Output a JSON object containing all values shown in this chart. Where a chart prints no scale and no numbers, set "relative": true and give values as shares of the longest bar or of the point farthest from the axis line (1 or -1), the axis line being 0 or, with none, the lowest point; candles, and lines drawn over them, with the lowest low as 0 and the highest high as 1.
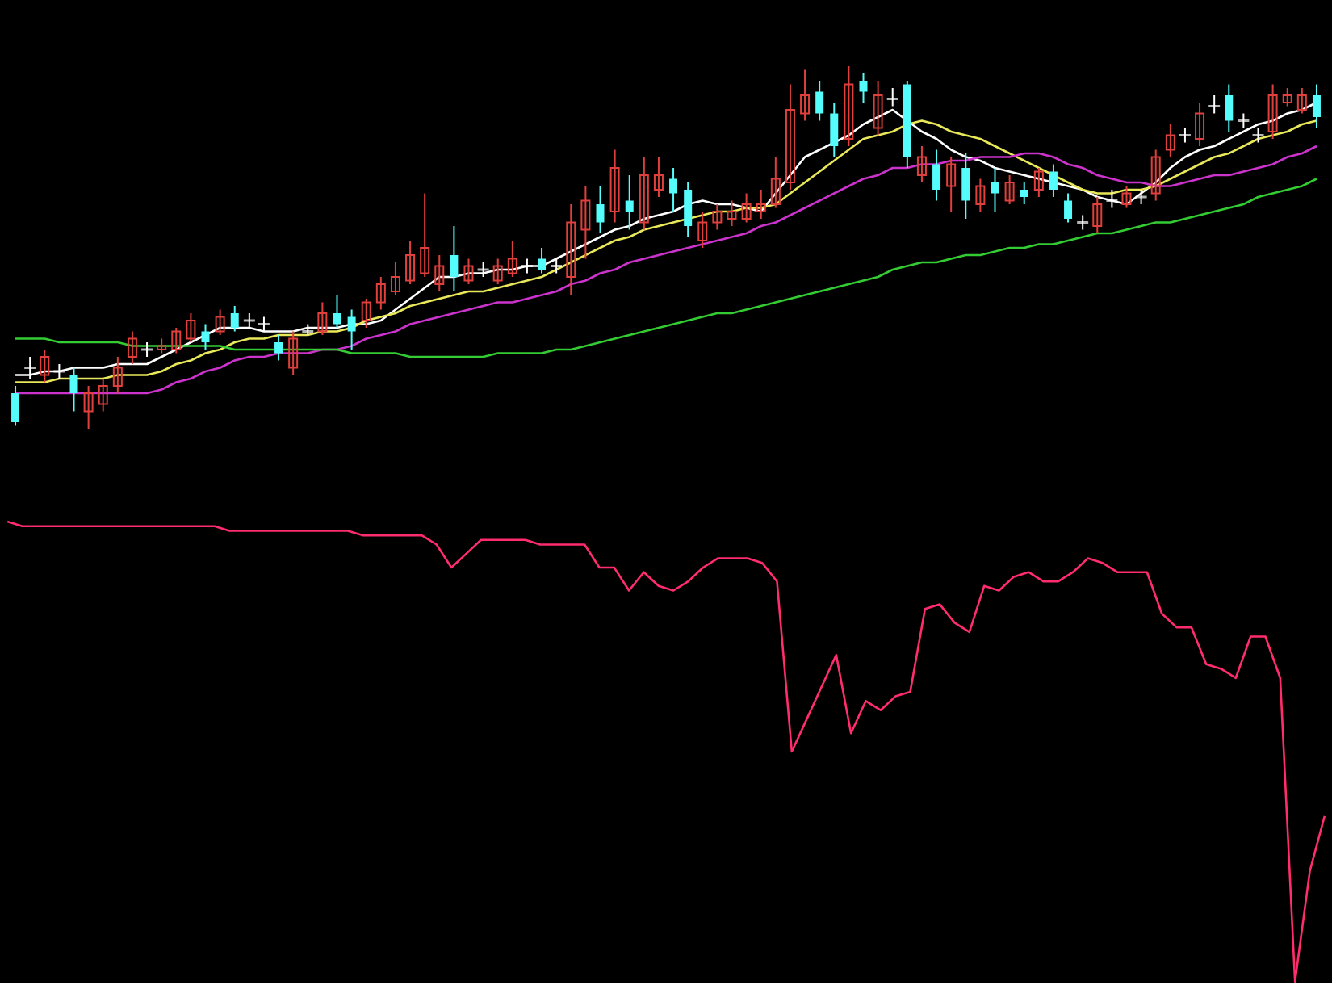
{
  "chart_data": [
    {
      "type": "candlestick",
      "relative": true,
      "categories": [
        null,
        null,
        null,
        null,
        null,
        null,
        null,
        null,
        null,
        null,
        null,
        null,
        null,
        null,
        null,
        null,
        null,
        null,
        null,
        null,
        null,
        null,
        null,
        null,
        null,
        null,
        null,
        null,
        null,
        null,
        null,
        null,
        null,
        null,
        null,
        null,
        null,
        null,
        null,
        null,
        null,
        null,
        null,
        null,
        null,
        null,
        null,
        null,
        null,
        null,
        null,
        null,
        null,
        null,
        null,
        null,
        null,
        null,
        null,
        null,
        null,
        null,
        null,
        null,
        null,
        null,
        null,
        null,
        null,
        null,
        null,
        null,
        null,
        null,
        null,
        null,
        null,
        null,
        null,
        null,
        null,
        null,
        null,
        null,
        null,
        null,
        null,
        null,
        null,
        null
      ],
      "ohlc": [
        [
          0.1,
          0.12,
          0.01,
          0.02
        ],
        [
          0.17,
          0.2,
          0.14,
          0.17
        ],
        [
          0.15,
          0.22,
          0.13,
          0.2
        ],
        [
          0.16,
          0.18,
          0.14,
          0.16
        ],
        [
          0.15,
          0.17,
          0.05,
          0.1
        ],
        [
          0.05,
          0.12,
          0,
          0.1
        ],
        [
          0.07,
          0.14,
          0.05,
          0.12
        ],
        [
          0.12,
          0.2,
          0.1,
          0.17
        ],
        [
          0.2,
          0.27,
          0.18,
          0.25
        ],
        [
          0.22,
          0.24,
          0.2,
          0.22
        ],
        [
          0.22,
          0.25,
          0.21,
          0.23
        ],
        [
          0.22,
          0.28,
          0.21,
          0.27
        ],
        [
          0.25,
          0.32,
          0.24,
          0.3
        ],
        [
          0.27,
          0.29,
          0.22,
          0.24
        ],
        [
          0.27,
          0.33,
          0.26,
          0.31
        ],
        [
          0.32,
          0.34,
          0.27,
          0.28
        ],
        [
          0.3,
          0.32,
          0.28,
          0.3
        ],
        [
          0.29,
          0.31,
          0.27,
          0.29
        ],
        [
          0.24,
          0.26,
          0.19,
          0.21
        ],
        [
          0.17,
          0.27,
          0.15,
          0.25
        ],
        [
          0.27,
          0.29,
          0.26,
          0.27
        ],
        [
          0.27,
          0.35,
          0.26,
          0.32
        ],
        [
          0.32,
          0.37,
          0.28,
          0.29
        ],
        [
          0.31,
          0.33,
          0.22,
          0.27
        ],
        [
          0.3,
          0.36,
          0.28,
          0.35
        ],
        [
          0.35,
          0.42,
          0.33,
          0.4
        ],
        [
          0.38,
          0.46,
          0.37,
          0.42
        ],
        [
          0.41,
          0.52,
          0.4,
          0.48
        ],
        [
          0.43,
          0.65,
          0.42,
          0.5
        ],
        [
          0.4,
          0.48,
          0.38,
          0.45
        ],
        [
          0.48,
          0.56,
          0.38,
          0.42
        ],
        [
          0.41,
          0.47,
          0.4,
          0.45
        ],
        [
          0.44,
          0.46,
          0.42,
          0.44
        ],
        [
          0.41,
          0.47,
          0.4,
          0.45
        ],
        [
          0.43,
          0.52,
          0.42,
          0.47
        ],
        [
          0.45,
          0.47,
          0.43,
          0.45
        ],
        [
          0.47,
          0.5,
          0.43,
          0.44
        ],
        [
          0.45,
          0.47,
          0.43,
          0.45
        ],
        [
          0.42,
          0.62,
          0.37,
          0.57
        ],
        [
          0.55,
          0.67,
          0.47,
          0.63
        ],
        [
          0.62,
          0.67,
          0.54,
          0.57
        ],
        [
          0.6,
          0.77,
          0.57,
          0.72
        ],
        [
          0.63,
          0.7,
          0.55,
          0.6
        ],
        [
          0.57,
          0.75,
          0.55,
          0.7
        ],
        [
          0.66,
          0.75,
          0.64,
          0.7
        ],
        [
          0.69,
          0.72,
          0.6,
          0.65
        ],
        [
          0.66,
          0.68,
          0.53,
          0.56
        ],
        [
          0.52,
          0.6,
          0.5,
          0.57
        ],
        [
          0.57,
          0.62,
          0.55,
          0.6
        ],
        [
          0.58,
          0.63,
          0.56,
          0.6
        ],
        [
          0.58,
          0.65,
          0.57,
          0.62
        ],
        [
          0.6,
          0.66,
          0.58,
          0.62
        ],
        [
          0.62,
          0.75,
          0.61,
          0.69
        ],
        [
          0.68,
          0.95,
          0.66,
          0.88
        ],
        [
          0.87,
          0.99,
          0.85,
          0.92
        ],
        [
          0.93,
          0.96,
          0.85,
          0.87
        ],
        [
          0.87,
          0.9,
          0.75,
          0.78
        ],
        [
          0.8,
          1.0,
          0.78,
          0.95
        ],
        [
          0.96,
          0.98,
          0.9,
          0.93
        ],
        [
          0.83,
          0.96,
          0.81,
          0.92
        ],
        [
          0.91,
          0.94,
          0.89,
          0.91
        ],
        [
          0.95,
          0.96,
          0.72,
          0.75
        ],
        [
          0.7,
          0.78,
          0.68,
          0.75
        ],
        [
          0.73,
          0.77,
          0.63,
          0.66
        ],
        [
          0.67,
          0.75,
          0.6,
          0.73
        ],
        [
          0.72,
          0.76,
          0.58,
          0.63
        ],
        [
          0.62,
          0.69,
          0.6,
          0.67
        ],
        [
          0.68,
          0.72,
          0.6,
          0.65
        ],
        [
          0.63,
          0.7,
          0.62,
          0.68
        ],
        [
          0.66,
          0.68,
          0.62,
          0.64
        ],
        [
          0.66,
          0.72,
          0.64,
          0.71
        ],
        [
          0.71,
          0.73,
          0.64,
          0.66
        ],
        [
          0.63,
          0.65,
          0.57,
          0.58
        ],
        [
          0.57,
          0.59,
          0.55,
          0.57
        ],
        [
          0.56,
          0.64,
          0.54,
          0.62
        ],
        [
          0.63,
          0.66,
          0.61,
          0.63
        ],
        [
          0.62,
          0.67,
          0.61,
          0.65
        ],
        [
          0.64,
          0.66,
          0.62,
          0.64
        ],
        [
          0.65,
          0.77,
          0.63,
          0.75
        ],
        [
          0.77,
          0.84,
          0.75,
          0.81
        ],
        [
          0.81,
          0.83,
          0.79,
          0.81
        ],
        [
          0.8,
          0.9,
          0.78,
          0.87
        ],
        [
          0.89,
          0.92,
          0.87,
          0.89
        ],
        [
          0.92,
          0.95,
          0.82,
          0.85
        ],
        [
          0.85,
          0.87,
          0.83,
          0.85
        ],
        [
          0.81,
          0.83,
          0.79,
          0.81
        ],
        [
          0.82,
          0.95,
          0.8,
          0.92
        ],
        [
          0.9,
          0.94,
          0.89,
          0.92
        ],
        [
          0.88,
          0.94,
          0.87,
          0.92
        ],
        [
          0.92,
          0.95,
          0.83,
          0.86
        ]
      ],
      "colors": [
        "#54fcfc",
        "#ffffff",
        "#e0403c",
        "#ffffff",
        "#54fcfc",
        "#e0403c",
        "#e0403c",
        "#e0403c",
        "#e0403c",
        "#ffffff",
        "#e0403c",
        "#e0403c",
        "#e0403c",
        "#54fcfc",
        "#e0403c",
        "#54fcfc",
        "#ffffff",
        "#ffffff",
        "#54fcfc",
        "#e0403c",
        "#ffffff",
        "#e0403c",
        "#54fcfc",
        "#54fcfc",
        "#e0403c",
        "#e0403c",
        "#e0403c",
        "#e0403c",
        "#e0403c",
        "#e0403c",
        "#54fcfc",
        "#e0403c",
        "#ffffff",
        "#e0403c",
        "#e0403c",
        "#ffffff",
        "#54fcfc",
        "#ffffff",
        "#e0403c",
        "#e0403c",
        "#54fcfc",
        "#e0403c",
        "#54fcfc",
        "#e0403c",
        "#e0403c",
        "#54fcfc",
        "#54fcfc",
        "#e0403c",
        "#e0403c",
        "#e0403c",
        "#e0403c",
        "#e0403c",
        "#e0403c",
        "#e0403c",
        "#e0403c",
        "#54fcfc",
        "#54fcfc",
        "#e0403c",
        "#54fcfc",
        "#e0403c",
        "#ffffff",
        "#54fcfc",
        "#e0403c",
        "#54fcfc",
        "#e0403c",
        "#54fcfc",
        "#e0403c",
        "#54fcfc",
        "#e0403c",
        "#54fcfc",
        "#e0403c",
        "#54fcfc",
        "#54fcfc",
        "#ffffff",
        "#e0403c",
        "#ffffff",
        "#e0403c",
        "#ffffff",
        "#e0403c",
        "#e0403c",
        "#ffffff",
        "#e0403c",
        "#ffffff",
        "#54fcfc",
        "#ffffff",
        "#ffffff",
        "#e0403c",
        "#e0403c",
        "#e0403c",
        "#54fcfc"
      ],
      "series": [
        {
          "type": "line",
          "color": "#ffffff",
          "values": [
            0.15,
            0.15,
            0.16,
            0.16,
            0.17,
            0.17,
            0.17,
            0.18,
            0.18,
            0.18,
            0.2,
            0.22,
            0.24,
            0.26,
            0.28,
            0.28,
            0.28,
            0.27,
            0.27,
            0.27,
            0.28,
            0.28,
            0.28,
            0.29,
            0.29,
            0.3,
            0.33,
            0.36,
            0.39,
            0.42,
            0.42,
            0.43,
            0.43,
            0.44,
            0.44,
            0.45,
            0.45,
            0.47,
            0.49,
            0.51,
            0.53,
            0.55,
            0.56,
            0.58,
            0.59,
            0.6,
            0.62,
            0.63,
            0.62,
            0.62,
            0.61,
            0.6,
            0.65,
            0.7,
            0.75,
            0.77,
            0.79,
            0.81,
            0.84,
            0.86,
            0.88,
            0.85,
            0.82,
            0.8,
            0.77,
            0.75,
            0.74,
            0.72,
            0.71,
            0.7,
            0.69,
            0.68,
            0.67,
            0.66,
            0.64,
            0.63,
            0.62,
            0.65,
            0.68,
            0.72,
            0.75,
            0.77,
            0.78,
            0.8,
            0.82,
            0.84,
            0.85,
            0.87,
            0.88,
            0.9
          ]
        },
        {
          "type": "line",
          "color": "#e8e85a",
          "values": [
            0.13,
            0.13,
            0.13,
            0.14,
            0.14,
            0.14,
            0.14,
            0.15,
            0.15,
            0.15,
            0.16,
            0.18,
            0.19,
            0.21,
            0.22,
            0.24,
            0.25,
            0.25,
            0.26,
            0.26,
            0.26,
            0.27,
            0.27,
            0.28,
            0.3,
            0.31,
            0.32,
            0.34,
            0.35,
            0.36,
            0.37,
            0.38,
            0.38,
            0.39,
            0.4,
            0.41,
            0.42,
            0.44,
            0.46,
            0.48,
            0.5,
            0.52,
            0.53,
            0.55,
            0.56,
            0.57,
            0.58,
            0.59,
            0.6,
            0.6,
            0.61,
            0.61,
            0.62,
            0.65,
            0.68,
            0.71,
            0.74,
            0.77,
            0.8,
            0.81,
            0.82,
            0.84,
            0.85,
            0.84,
            0.82,
            0.81,
            0.8,
            0.78,
            0.76,
            0.74,
            0.72,
            0.7,
            0.68,
            0.66,
            0.65,
            0.65,
            0.66,
            0.66,
            0.67,
            0.69,
            0.71,
            0.73,
            0.75,
            0.76,
            0.78,
            0.8,
            0.81,
            0.82,
            0.84,
            0.85
          ]
        },
        {
          "type": "line",
          "color": "#cc33cc",
          "values": [
            0.1,
            0.1,
            0.1,
            0.1,
            0.1,
            0.1,
            0.1,
            0.1,
            0.1,
            0.1,
            0.11,
            0.13,
            0.14,
            0.16,
            0.17,
            0.19,
            0.2,
            0.2,
            0.21,
            0.21,
            0.21,
            0.22,
            0.22,
            0.23,
            0.25,
            0.26,
            0.27,
            0.29,
            0.3,
            0.31,
            0.32,
            0.33,
            0.34,
            0.35,
            0.35,
            0.36,
            0.37,
            0.38,
            0.4,
            0.41,
            0.43,
            0.44,
            0.46,
            0.47,
            0.48,
            0.49,
            0.5,
            0.51,
            0.52,
            0.53,
            0.54,
            0.56,
            0.57,
            0.59,
            0.61,
            0.63,
            0.65,
            0.67,
            0.69,
            0.7,
            0.72,
            0.72,
            0.73,
            0.73,
            0.74,
            0.74,
            0.75,
            0.75,
            0.75,
            0.76,
            0.76,
            0.75,
            0.73,
            0.72,
            0.7,
            0.69,
            0.68,
            0.68,
            0.67,
            0.67,
            0.68,
            0.69,
            0.7,
            0.7,
            0.71,
            0.72,
            0.73,
            0.75,
            0.76,
            0.78
          ]
        },
        {
          "type": "line",
          "color": "#33cc33",
          "values": [
            0.25,
            0.25,
            0.25,
            0.24,
            0.24,
            0.24,
            0.24,
            0.24,
            0.23,
            0.23,
            0.23,
            0.23,
            0.23,
            0.23,
            0.23,
            0.22,
            0.22,
            0.22,
            0.22,
            0.22,
            0.22,
            0.22,
            0.22,
            0.21,
            0.21,
            0.21,
            0.21,
            0.2,
            0.2,
            0.2,
            0.2,
            0.2,
            0.2,
            0.21,
            0.21,
            0.21,
            0.21,
            0.22,
            0.22,
            0.23,
            0.24,
            0.25,
            0.26,
            0.27,
            0.28,
            0.29,
            0.3,
            0.31,
            0.32,
            0.32,
            0.33,
            0.34,
            0.35,
            0.36,
            0.37,
            0.38,
            0.39,
            0.4,
            0.41,
            0.42,
            0.44,
            0.45,
            0.46,
            0.46,
            0.47,
            0.48,
            0.48,
            0.49,
            0.5,
            0.5,
            0.51,
            0.51,
            0.52,
            0.53,
            0.54,
            0.54,
            0.55,
            0.56,
            0.57,
            0.57,
            0.58,
            0.59,
            0.6,
            0.61,
            0.62,
            0.64,
            0.65,
            0.66,
            0.67,
            0.69
          ]
        }
      ]
    },
    {
      "type": "line",
      "relative": true,
      "categories": [
        null,
        null,
        null,
        null,
        null,
        null,
        null,
        null,
        null,
        null,
        null,
        null,
        null,
        null,
        null,
        null,
        null,
        null,
        null,
        null,
        null,
        null,
        null,
        null,
        null,
        null,
        null,
        null,
        null,
        null,
        null,
        null,
        null,
        null,
        null,
        null,
        null,
        null,
        null,
        null,
        null,
        null,
        null,
        null,
        null,
        null,
        null,
        null,
        null,
        null,
        null,
        null,
        null,
        null,
        null,
        null,
        null,
        null,
        null,
        null,
        null,
        null,
        null,
        null,
        null,
        null,
        null,
        null,
        null,
        null,
        null,
        null,
        null,
        null,
        null,
        null,
        null,
        null,
        null,
        null,
        null,
        null,
        null,
        null,
        null,
        null,
        null,
        null,
        null,
        null
      ],
      "series": [
        {
          "color": "#ff2d6e",
          "values": [
            1.0,
            0.99,
            0.99,
            0.99,
            0.99,
            0.99,
            0.99,
            0.99,
            0.99,
            0.99,
            0.99,
            0.99,
            0.99,
            0.99,
            0.99,
            0.98,
            0.98,
            0.98,
            0.98,
            0.98,
            0.98,
            0.98,
            0.98,
            0.98,
            0.97,
            0.97,
            0.97,
            0.97,
            0.97,
            0.95,
            0.9,
            0.93,
            0.96,
            0.96,
            0.96,
            0.96,
            0.95,
            0.95,
            0.95,
            0.95,
            0.9,
            0.9,
            0.85,
            0.89,
            0.86,
            0.85,
            0.87,
            0.9,
            0.92,
            0.92,
            0.92,
            0.91,
            0.87,
            0.5,
            0.57,
            0.64,
            0.71,
            0.54,
            0.61,
            0.59,
            0.62,
            0.63,
            0.81,
            0.82,
            0.78,
            0.76,
            0.86,
            0.85,
            0.88,
            0.89,
            0.87,
            0.87,
            0.89,
            0.92,
            0.91,
            0.89,
            0.89,
            0.89,
            0.8,
            0.77,
            0.77,
            0.69,
            0.68,
            0.66,
            0.75,
            0.75,
            0.66,
            0,
            0.24,
            0.36
          ]
        }
      ]
    }
  ]
}
